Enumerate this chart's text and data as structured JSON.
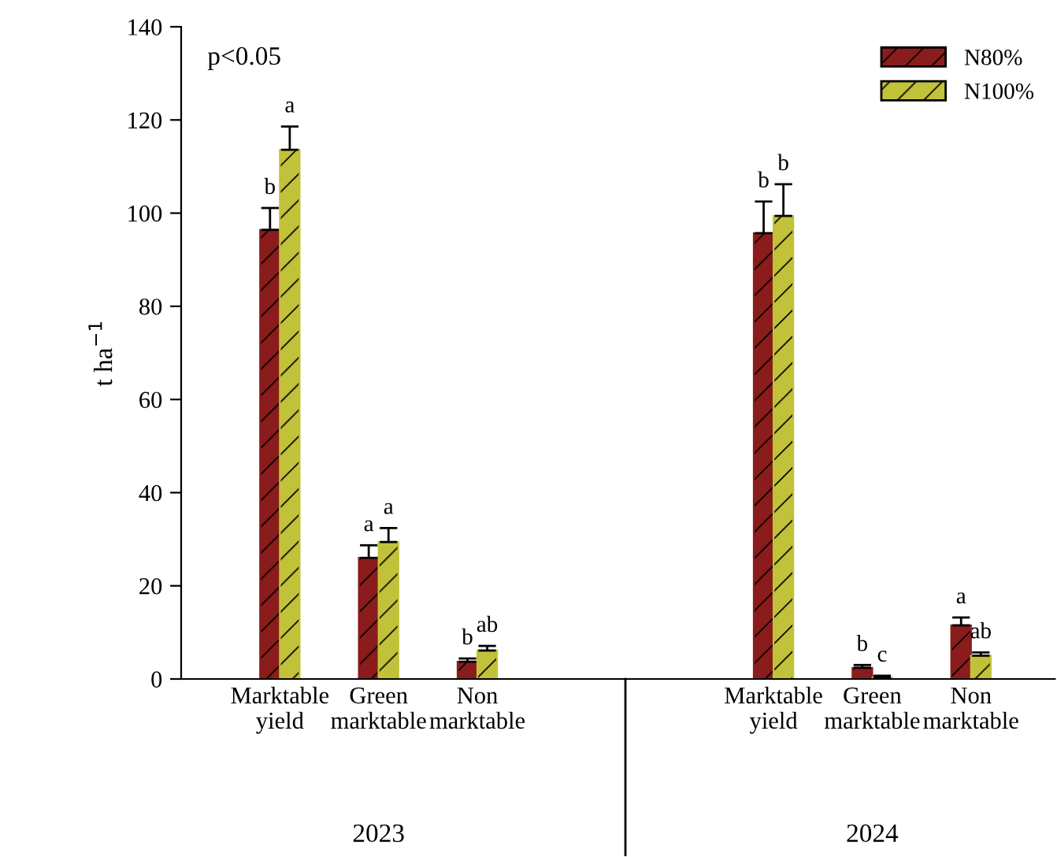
{
  "chart_data": {
    "type": "bar",
    "ylabel": "t ha$^{−1}$",
    "categories": [
      "Marktable\nyield",
      "Green\nmarktable",
      "Non\nmarktable",
      null,
      null,
      "Marktable\nyield",
      "Green\nmarktable",
      "Non\nmarktable"
    ],
    "series": [
      {
        "name": "N80%",
        "color": "#8b1c1c",
        "values": [
          96.4,
          26,
          3.7,
          null,
          null,
          95.7,
          2.4,
          11.5
        ],
        "errors": [
          4.7,
          2.7,
          0.7,
          null,
          null,
          6.8,
          0.6,
          1.7
        ],
        "value_labels": [
          "b",
          "a",
          "b",
          null,
          null,
          "b",
          "b",
          "a"
        ]
      },
      {
        "name": "N100%",
        "color": "#c2c23a",
        "values": [
          113.6,
          29.4,
          6.1,
          null,
          null,
          99.4,
          0.3,
          5
        ],
        "errors": [
          5,
          3,
          1,
          null,
          null,
          6.8,
          0.4,
          0.7
        ],
        "value_labels": [
          "a",
          "a",
          "ab",
          null,
          null,
          "b",
          "c",
          "ab"
        ]
      }
    ],
    "ylim": [
      0,
      140
    ],
    "yticks": [
      0,
      20,
      40,
      60,
      80,
      100,
      120,
      140
    ],
    "annotations": [
      "p<0.05",
      "2023",
      "2024"
    ],
    "legend": "top right",
    "grid": false
  }
}
